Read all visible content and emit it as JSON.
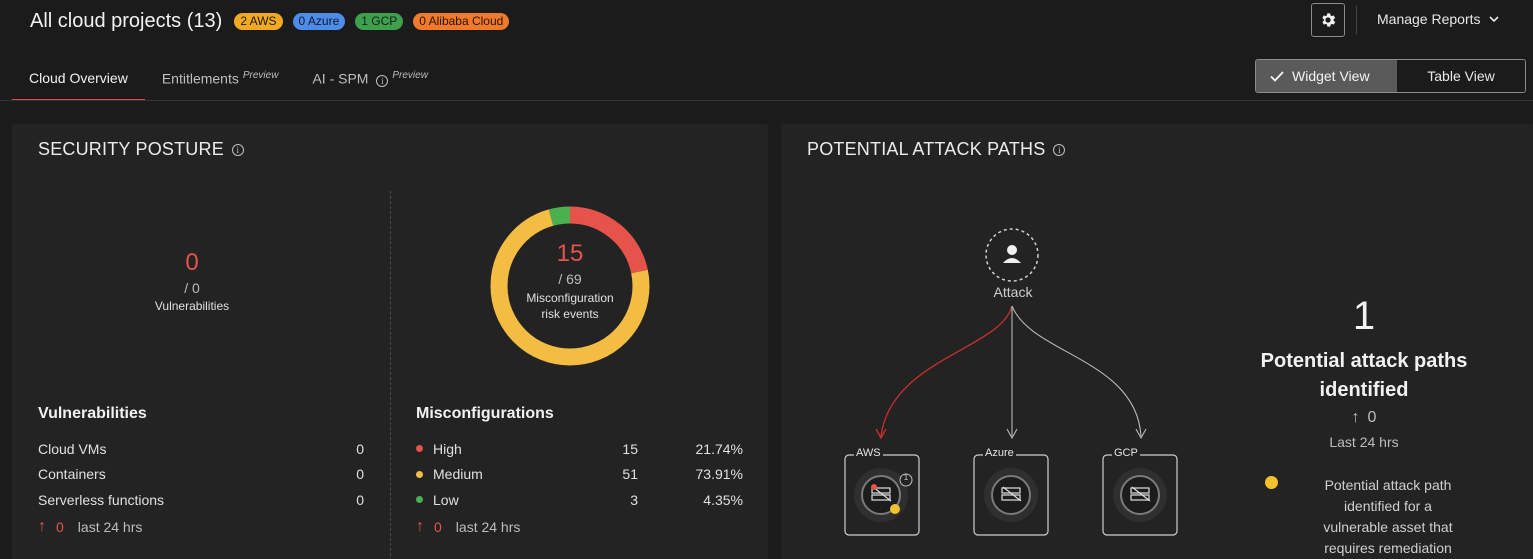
{
  "header": {
    "title": "All cloud projects (13)",
    "badges": [
      {
        "label": "2 AWS",
        "color": "#f2a922"
      },
      {
        "label": "0 Azure",
        "color": "#4d8ce8"
      },
      {
        "label": "1 GCP",
        "color": "#3ea04d"
      },
      {
        "label": "0 Alibaba Cloud",
        "color": "#f07a2c"
      }
    ],
    "settings_icon": "gear-icon",
    "manage_reports": "Manage Reports"
  },
  "tabs": [
    {
      "label": "Cloud Overview",
      "tag": "",
      "active": true
    },
    {
      "label": "Entitlements",
      "tag": "Preview",
      "active": false
    },
    {
      "label": "AI - SPM",
      "tag": "Preview",
      "active": false
    }
  ],
  "view_toggle": {
    "widget": "Widget View",
    "table": "Table View",
    "selected": "widget"
  },
  "security_posture": {
    "title": "SECURITY POSTURE",
    "vuln_summary": {
      "value": "0",
      "denominator": "/ 0",
      "caption": "Vulnerabilities"
    },
    "misconfig_summary": {
      "value": "15",
      "denominator": "/ 69",
      "caption_line1": "Misconfiguration",
      "caption_line2": "risk events"
    },
    "donut": {
      "high": 15,
      "medium": 51,
      "low": 3,
      "colors": {
        "high": "#e5534b",
        "medium": "#f2bd42",
        "low": "#4caf50"
      }
    },
    "vulnerabilities": {
      "heading": "Vulnerabilities",
      "rows": [
        {
          "label": "Cloud VMs",
          "value": "0"
        },
        {
          "label": "Containers",
          "value": "0"
        },
        {
          "label": "Serverless functions",
          "value": "0"
        }
      ],
      "trend_value": "0",
      "trend_label": "last 24 hrs"
    },
    "misconfigurations": {
      "heading": "Misconfigurations",
      "rows": [
        {
          "label": "High",
          "count": "15",
          "pct": "21.74%",
          "color": "#e5534b"
        },
        {
          "label": "Medium",
          "count": "51",
          "pct": "73.91%",
          "color": "#f2bd42"
        },
        {
          "label": "Low",
          "count": "3",
          "pct": "4.35%",
          "color": "#4caf50"
        }
      ],
      "trend_value": "0",
      "trend_label": "last 24 hrs"
    }
  },
  "attack_paths": {
    "title": "POTENTIAL ATTACK PATHS",
    "attack_label": "Attack",
    "nodes": [
      {
        "label": "AWS",
        "count": "1"
      },
      {
        "label": "Azure"
      },
      {
        "label": "GCP"
      }
    ],
    "count": "1",
    "headline_line1": "Potential attack paths",
    "headline_line2": "identified",
    "trend_value": "0",
    "trend_period": "Last 24 hrs",
    "legend_line1": "Potential attack path",
    "legend_line2": "identified for a",
    "legend_line3": "vulnerable asset that",
    "legend_line4": "requires remediation"
  }
}
